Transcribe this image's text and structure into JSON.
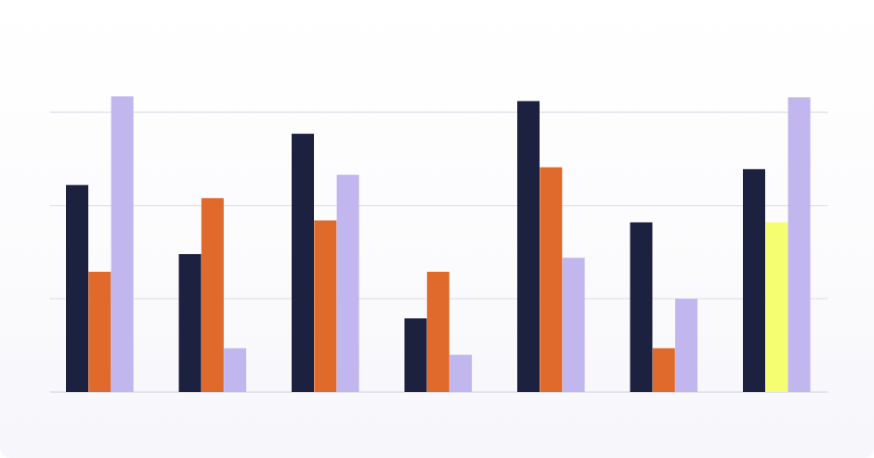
{
  "chart_data": {
    "type": "bar",
    "categories": [
      "",
      "",
      "",
      "",
      "",
      "",
      ""
    ],
    "series": [
      {
        "values": [
          222,
          148,
          277,
          79,
          312,
          182,
          239
        ]
      },
      {
        "values": [
          129,
          208,
          184,
          129,
          241,
          47,
          182
        ]
      },
      {
        "values": [
          317,
          47,
          233,
          40,
          144,
          100,
          316
        ]
      }
    ],
    "highlight": {
      "series": 1,
      "index": 6,
      "color": "#f5fd70"
    },
    "colors": [
      "#1d2140",
      "#e06a2c",
      "#c1b6ee"
    ],
    "grid_color": "#dcdce6",
    "ylim": [
      0,
      300
    ],
    "gridlines": [
      0,
      100,
      200,
      300
    ],
    "grid": true,
    "legend": "none"
  }
}
